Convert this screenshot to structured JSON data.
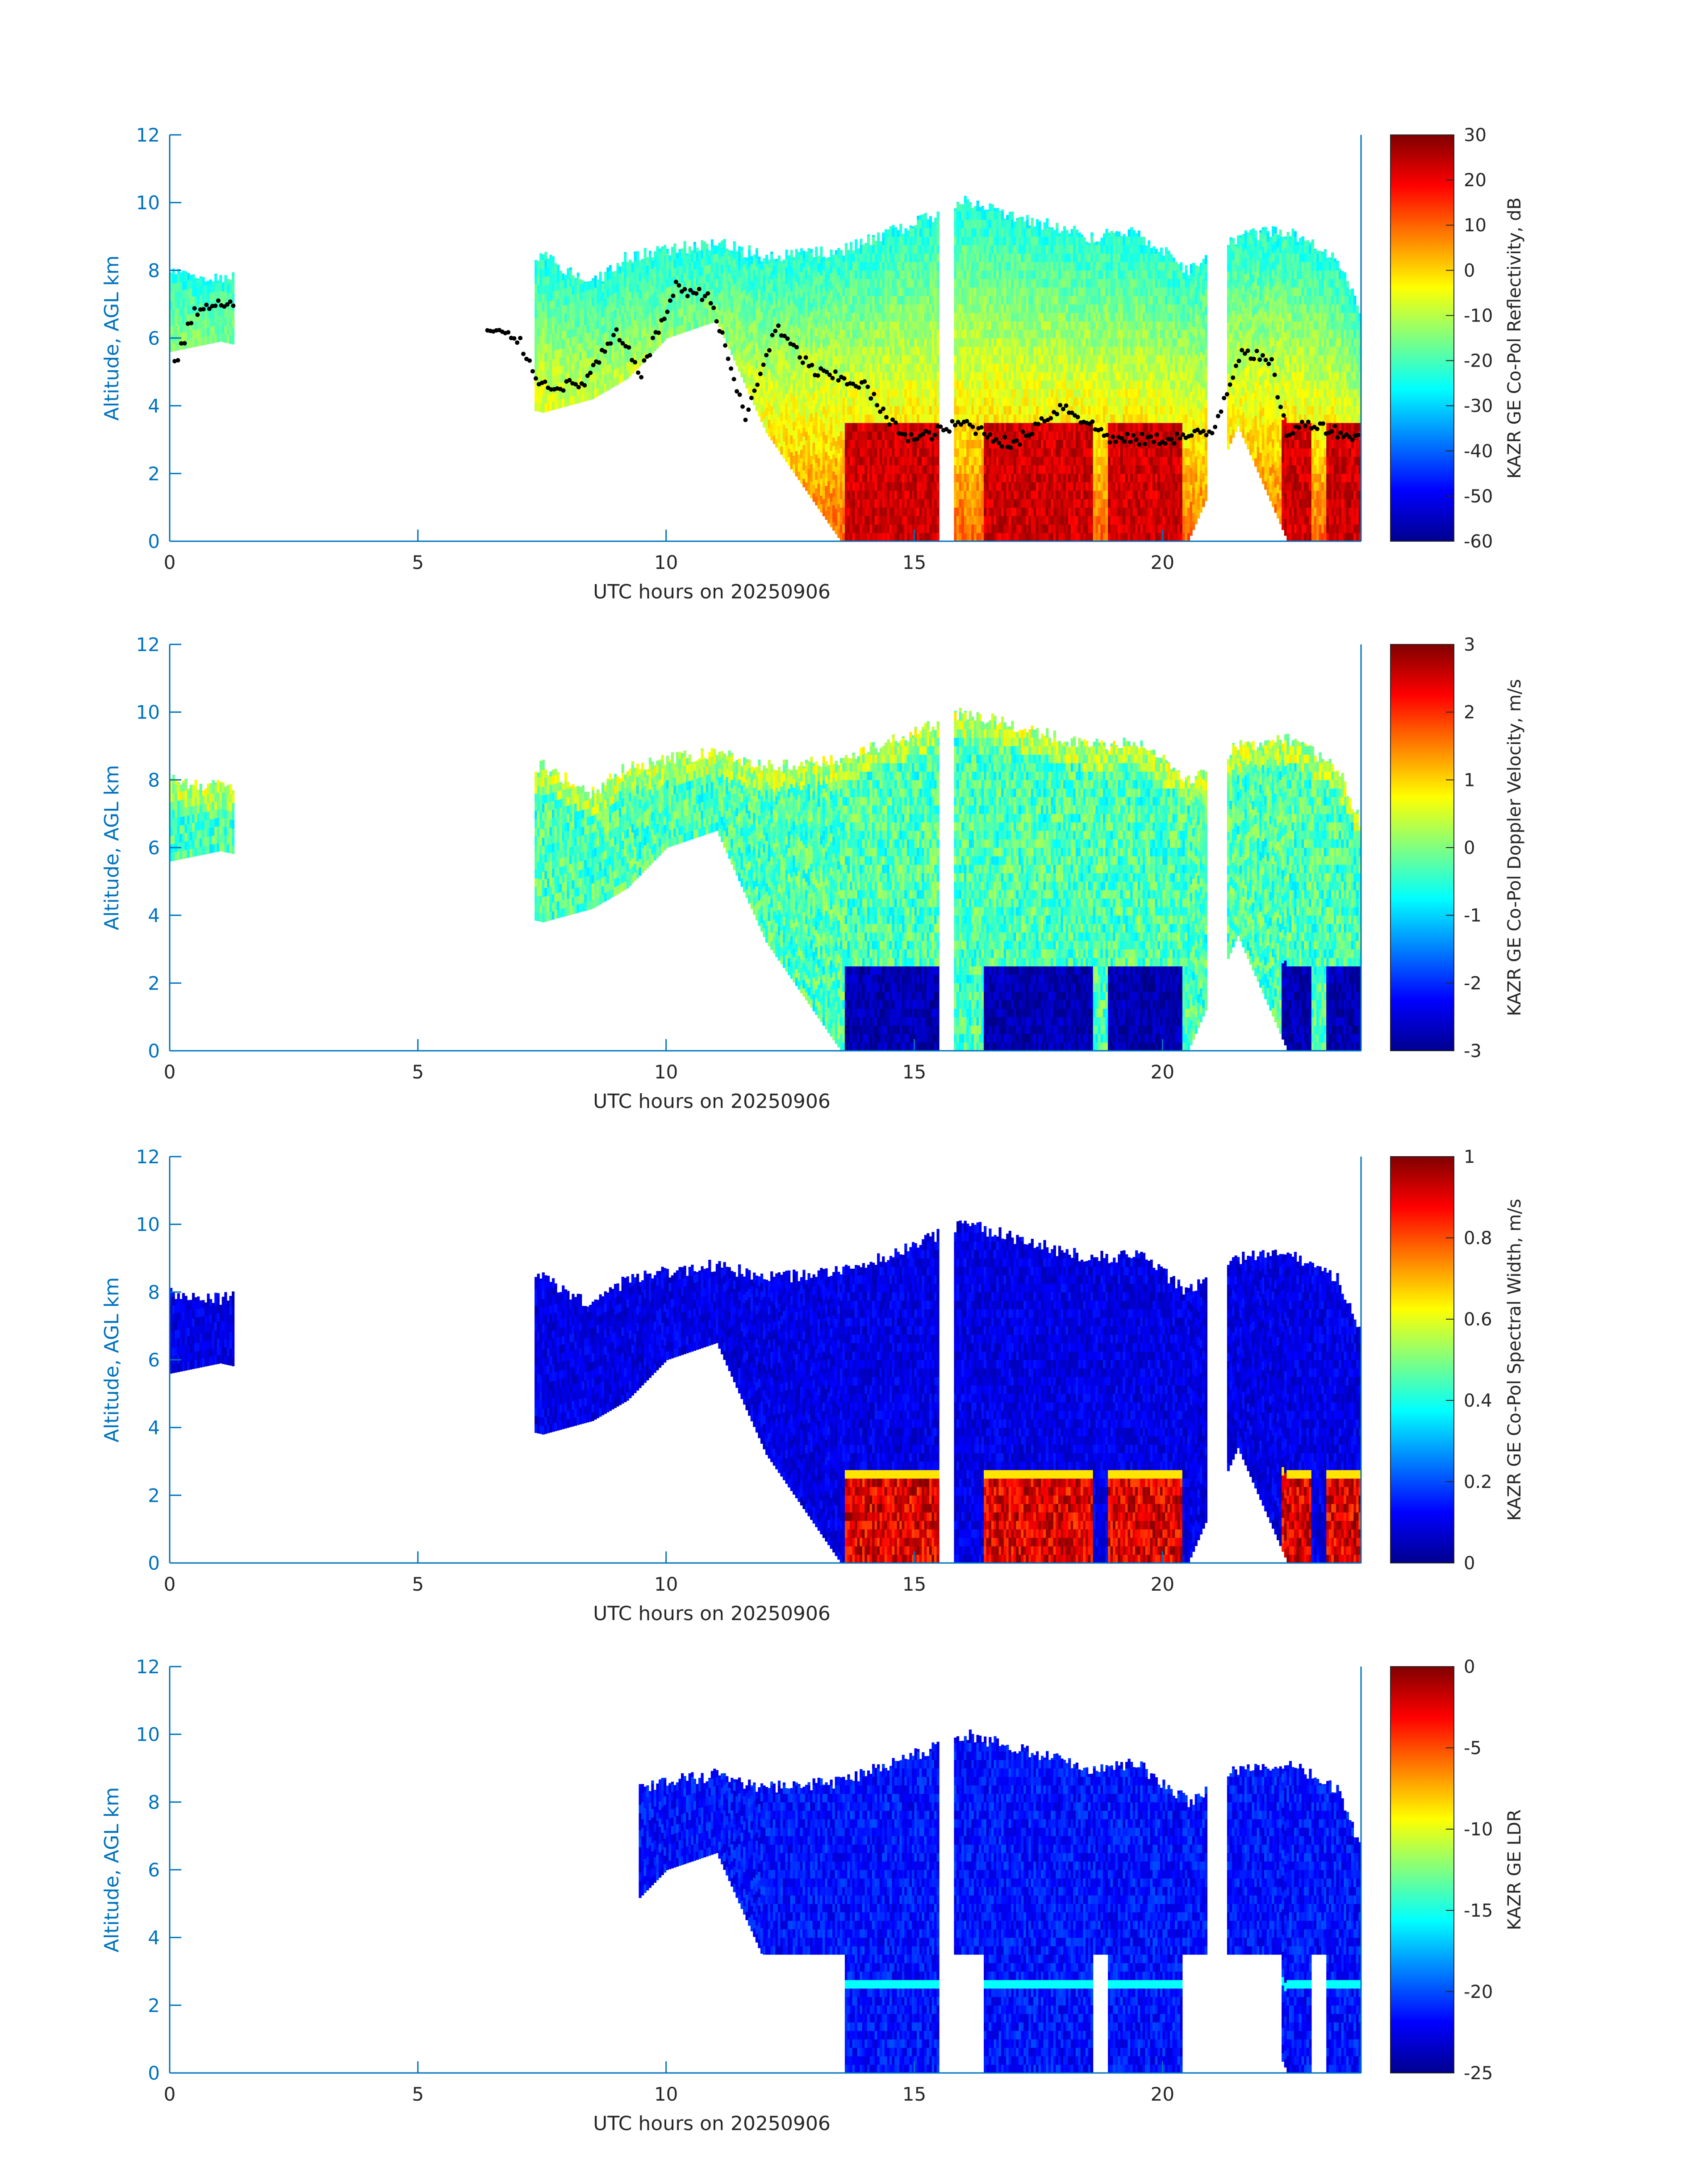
{
  "chart_data": [
    {
      "type": "heatmap",
      "quantity": "reflectivity",
      "xlabel": "UTC hours on 20250906",
      "ylabel": "Altitude, AGL km",
      "xlim": [
        0,
        24
      ],
      "ylim": [
        0,
        12
      ],
      "xticks": [
        0,
        5,
        10,
        15,
        20
      ],
      "yticks": [
        0,
        2,
        4,
        6,
        8,
        10,
        12
      ],
      "colorbar": {
        "label": "KAZR GE Co-Pol Reflectivity, dB",
        "range": [
          -60,
          30
        ],
        "ticks": [
          30,
          20,
          10,
          0,
          -10,
          -20,
          -30,
          -40,
          -50,
          -60
        ],
        "colormap": "jet"
      },
      "cloud_top_km": [
        [
          0,
          8.2
        ],
        [
          1,
          8.0
        ],
        [
          7.5,
          8.6
        ],
        [
          8.5,
          7.8
        ],
        [
          9.2,
          8.6
        ],
        [
          10,
          8.8
        ],
        [
          11,
          9.0
        ],
        [
          12,
          8.6
        ],
        [
          13.5,
          8.8
        ],
        [
          15,
          9.6
        ],
        [
          16,
          10.2
        ],
        [
          17,
          9.8
        ],
        [
          18.5,
          9.2
        ],
        [
          19.5,
          9.3
        ],
        [
          20.5,
          8.2
        ],
        [
          21.5,
          9.2
        ],
        [
          22.5,
          9.4
        ],
        [
          23.5,
          8.6
        ],
        [
          24,
          6.8
        ]
      ],
      "cloud_base_km": [
        [
          0,
          5.6
        ],
        [
          1,
          5.9
        ],
        [
          7.5,
          3.8
        ],
        [
          8.5,
          4.2
        ],
        [
          9.2,
          4.8
        ],
        [
          10,
          6.0
        ],
        [
          11,
          6.5
        ],
        [
          12,
          3.2
        ],
        [
          13.5,
          0.0
        ],
        [
          15,
          0.0
        ],
        [
          16,
          0.0
        ],
        [
          17,
          0.0
        ],
        [
          18.5,
          0.0
        ],
        [
          19.5,
          0.0
        ],
        [
          20.5,
          0.0
        ],
        [
          21.5,
          3.4
        ],
        [
          22.5,
          0.0
        ],
        [
          23.5,
          0.0
        ],
        [
          24,
          0.0
        ]
      ],
      "cloud_base_series": [
        [
          0.1,
          5.2
        ],
        [
          0.3,
          6.0
        ],
        [
          0.5,
          6.8
        ],
        [
          1.1,
          7.0
        ],
        [
          6.4,
          6.2
        ],
        [
          7.0,
          6.0
        ],
        [
          7.5,
          4.6
        ],
        [
          8.3,
          4.6
        ],
        [
          9.0,
          6.1
        ],
        [
          9.5,
          5.0
        ],
        [
          10.2,
          7.5
        ],
        [
          10.9,
          7.2
        ],
        [
          11.6,
          3.6
        ],
        [
          12.2,
          6.3
        ],
        [
          13.0,
          5.0
        ],
        [
          14.0,
          4.6
        ],
        [
          14.5,
          3.5
        ],
        [
          15.0,
          3.0
        ],
        [
          16.0,
          3.5
        ],
        [
          17.0,
          2.8
        ],
        [
          17.5,
          3.5
        ],
        [
          18.0,
          4.0
        ],
        [
          19.0,
          3.0
        ],
        [
          20.0,
          3.0
        ],
        [
          21.0,
          3.2
        ],
        [
          21.6,
          5.7
        ],
        [
          22.2,
          5.2
        ],
        [
          22.5,
          3.2
        ],
        [
          23.0,
          3.5
        ],
        [
          24.0,
          3.0
        ]
      ]
    },
    {
      "type": "heatmap",
      "quantity": "doppler",
      "xlabel": "UTC hours on 20250906",
      "ylabel": "Altitude, AGL km",
      "xlim": [
        0,
        24
      ],
      "ylim": [
        0,
        12
      ],
      "xticks": [
        0,
        5,
        10,
        15,
        20
      ],
      "yticks": [
        0,
        2,
        4,
        6,
        8,
        10,
        12
      ],
      "colorbar": {
        "label": "KAZR GE Co-Pol Doppler Velocity, m/s",
        "range": [
          -3,
          3
        ],
        "ticks": [
          3,
          2,
          1,
          0,
          -1,
          -2,
          -3
        ],
        "colormap": "jet"
      }
    },
    {
      "type": "heatmap",
      "quantity": "width",
      "xlabel": "UTC hours on 20250906",
      "ylabel": "Altitude, AGL km",
      "xlim": [
        0,
        24
      ],
      "ylim": [
        0,
        12
      ],
      "xticks": [
        0,
        5,
        10,
        15,
        20
      ],
      "yticks": [
        0,
        2,
        4,
        6,
        8,
        10,
        12
      ],
      "colorbar": {
        "label": "KAZR GE Co-Pol Spectral Width, m/s",
        "range": [
          0,
          1
        ],
        "ticks": [
          1,
          0.8,
          0.6,
          0.4,
          0.2,
          0
        ],
        "colormap": "jet"
      }
    },
    {
      "type": "heatmap",
      "quantity": "ldr",
      "xlabel": "UTC hours on 20250906",
      "ylabel": "Altitude, AGL km",
      "xlim": [
        0,
        24
      ],
      "ylim": [
        0,
        12
      ],
      "xticks": [
        0,
        5,
        10,
        15,
        20
      ],
      "yticks": [
        0,
        2,
        4,
        6,
        8,
        10,
        12
      ],
      "colorbar": {
        "label": "KAZR GE LDR",
        "range": [
          -25,
          0
        ],
        "ticks": [
          0,
          -5,
          -10,
          -15,
          -20,
          -25
        ],
        "colormap": "jet"
      }
    }
  ],
  "colors": {
    "axis": "#0072bd",
    "axis_label": "#0072bd",
    "text": "#262626"
  },
  "rain_periods_hours": [
    [
      13.6,
      15.5
    ],
    [
      16.4,
      18.6
    ],
    [
      18.9,
      20.4
    ],
    [
      22.4,
      23.0
    ],
    [
      23.3,
      24.0
    ]
  ],
  "melting_layer_km": 2.5
}
